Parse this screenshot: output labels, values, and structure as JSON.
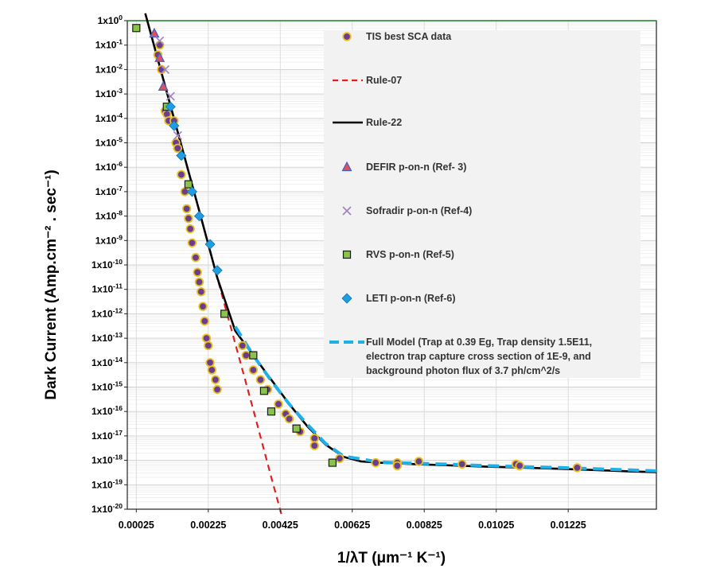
{
  "chart_data": {
    "type": "scatter",
    "xlabel": "1/λT (μm⁻¹ K⁻¹)",
    "ylabel": "Dark Current (Amp.cm⁻² . sec⁻¹)",
    "x_ticks": [
      "0.00025",
      "0.00225",
      "0.00425",
      "0.00625",
      "0.00825",
      "0.01025",
      "0.01225"
    ],
    "x_tick_values": [
      0.00025,
      0.00225,
      0.00425,
      0.00625,
      0.00825,
      0.01025,
      0.01225
    ],
    "xlim": [
      0,
      0.0147
    ],
    "y_scale": "log",
    "ylim": [
      1e-20,
      1
    ],
    "y_tick_exponents": [
      0,
      -1,
      -2,
      -3,
      -4,
      -5,
      -6,
      -7,
      -8,
      -9,
      -10,
      -11,
      -12,
      -13,
      -14,
      -15,
      -16,
      -17,
      -18,
      -19,
      -20
    ],
    "grid": true,
    "legend_position": "top-right",
    "series": [
      {
        "name": "TIS best SCA data",
        "marker": "circle",
        "color": "#6a3d8f",
        "edge_color": "#e8c020",
        "points": [
          [
            0.00085,
            0.04
          ],
          [
            0.0009,
            0.1
          ],
          [
            0.00095,
            0.01
          ],
          [
            0.00105,
            0.0002
          ],
          [
            0.0011,
            0.00015
          ],
          [
            0.00115,
            8e-05
          ],
          [
            0.0013,
            8e-05
          ],
          [
            0.00135,
            1e-05
          ],
          [
            0.0014,
            6e-06
          ],
          [
            0.0015,
            5e-07
          ],
          [
            0.0016,
            1e-07
          ],
          [
            0.00165,
            2e-08
          ],
          [
            0.0017,
            8e-09
          ],
          [
            0.00175,
            3e-09
          ],
          [
            0.0018,
            8e-10
          ],
          [
            0.0019,
            2e-10
          ],
          [
            0.00195,
            5e-11
          ],
          [
            0.002,
            2e-11
          ],
          [
            0.00205,
            8e-12
          ],
          [
            0.0021,
            2e-12
          ],
          [
            0.00215,
            5e-13
          ],
          [
            0.0022,
            1e-13
          ],
          [
            0.00225,
            5e-14
          ],
          [
            0.0023,
            1e-14
          ],
          [
            0.00235,
            5e-15
          ],
          [
            0.00245,
            2e-15
          ],
          [
            0.0025,
            8e-16
          ],
          [
            0.0032,
            5e-14
          ],
          [
            0.0033,
            2e-14
          ],
          [
            0.0035,
            5e-15
          ],
          [
            0.0037,
            2e-15
          ],
          [
            0.0039,
            8e-16
          ],
          [
            0.0042,
            2e-16
          ],
          [
            0.0044,
            8e-17
          ],
          [
            0.0045,
            5e-17
          ],
          [
            0.0048,
            1.5e-17
          ],
          [
            0.0052,
            8e-18
          ],
          [
            0.0052,
            4e-18
          ],
          [
            0.0059,
            1.2e-18
          ],
          [
            0.0069,
            8e-19
          ],
          [
            0.0075,
            8e-19
          ],
          [
            0.0075,
            6e-19
          ],
          [
            0.0081,
            9e-19
          ],
          [
            0.0093,
            7e-19
          ],
          [
            0.0108,
            7e-19
          ],
          [
            0.0109,
            6e-19
          ],
          [
            0.0125,
            5e-19
          ]
        ]
      },
      {
        "name": "Rule-07",
        "marker": "line",
        "line_style": "dashed",
        "color": "#e02020",
        "points": [
          [
            0.0005,
            2.0
          ],
          [
            0.001,
            0.004
          ],
          [
            0.0015,
            8e-06
          ],
          [
            0.002,
            1.6e-08
          ],
          [
            0.0025,
            3e-11
          ],
          [
            0.003,
            6e-14
          ],
          [
            0.0035,
            1.2e-16
          ],
          [
            0.004,
            2e-19
          ],
          [
            0.0043,
            5e-21
          ]
        ]
      },
      {
        "name": "Rule-22",
        "marker": "line",
        "line_style": "solid",
        "color": "#000000",
        "points": [
          [
            0.0005,
            2.0
          ],
          [
            0.001,
            0.004
          ],
          [
            0.0015,
            8e-06
          ],
          [
            0.002,
            1.6e-08
          ],
          [
            0.0025,
            3e-11
          ],
          [
            0.003,
            2e-13
          ],
          [
            0.0035,
            2e-14
          ],
          [
            0.004,
            2e-15
          ],
          [
            0.0045,
            2e-16
          ],
          [
            0.005,
            2.5e-17
          ],
          [
            0.0055,
            4.5e-18
          ],
          [
            0.006,
            1.4e-18
          ],
          [
            0.0065,
            9e-19
          ],
          [
            0.007,
            8e-19
          ],
          [
            0.008,
            7e-19
          ],
          [
            0.009,
            6.2e-19
          ],
          [
            0.01,
            5.5e-19
          ],
          [
            0.011,
            5e-19
          ],
          [
            0.012,
            4.5e-19
          ],
          [
            0.013,
            4e-19
          ],
          [
            0.014,
            3.5e-19
          ],
          [
            0.0147,
            3.3e-19
          ]
        ]
      },
      {
        "name": "DEFIR p-on-n (Ref- 3)",
        "marker": "triangle",
        "color": "#e05060",
        "edge_color": "#4060c0",
        "points": [
          [
            0.00075,
            0.3
          ],
          [
            0.0009,
            0.03
          ],
          [
            0.001,
            0.002
          ]
        ]
      },
      {
        "name": "Sofradir p-on-n (Ref-4)",
        "marker": "x",
        "color": "#a080c0",
        "points": [
          [
            0.0009,
            0.15
          ],
          [
            0.00105,
            0.01
          ],
          [
            0.0012,
            0.0008
          ],
          [
            0.0014,
            2e-05
          ]
        ]
      },
      {
        "name": "RVS p-on-n (Ref-5)",
        "marker": "square",
        "color": "#8bc34a",
        "edge_color": "#1a1a1a",
        "points": [
          [
            0.00025,
            0.5
          ],
          [
            0.0011,
            0.0003
          ],
          [
            0.0017,
            2e-07
          ],
          [
            0.0027,
            1e-12
          ],
          [
            0.0035,
            2e-14
          ],
          [
            0.0038,
            7e-16
          ],
          [
            0.004,
            1e-16
          ],
          [
            0.0047,
            2e-17
          ],
          [
            0.0057,
            8e-19
          ]
        ]
      },
      {
        "name": "LETI p-on-n (Ref-6)",
        "marker": "diamond",
        "color": "#1e9ee0",
        "points": [
          [
            0.0012,
            0.0003
          ],
          [
            0.0013,
            5e-05
          ],
          [
            0.0015,
            3e-06
          ],
          [
            0.0018,
            1e-07
          ],
          [
            0.002,
            1e-08
          ],
          [
            0.0023,
            7e-10
          ],
          [
            0.0025,
            6e-11
          ]
        ]
      },
      {
        "name": "Full Model (Trap at 0.39 Eg, Trap density 1.5E11, electron trap capture cross section of 1E-9, and background photon flux of 3.7 ph/cm^2/s",
        "marker": "line",
        "line_style": "dashed",
        "color": "#20b0e8",
        "points": [
          [
            0.003,
            3e-13
          ],
          [
            0.0035,
            2e-14
          ],
          [
            0.004,
            1.8e-15
          ],
          [
            0.0045,
            2e-16
          ],
          [
            0.005,
            3e-17
          ],
          [
            0.0055,
            5e-18
          ],
          [
            0.006,
            1.5e-18
          ],
          [
            0.007,
            8.5e-19
          ],
          [
            0.008,
            7.5e-19
          ],
          [
            0.009,
            6.8e-19
          ],
          [
            0.01,
            6e-19
          ],
          [
            0.011,
            5.5e-19
          ],
          [
            0.012,
            5e-19
          ],
          [
            0.013,
            4.5e-19
          ],
          [
            0.014,
            4e-19
          ],
          [
            0.0147,
            3.7e-19
          ]
        ]
      }
    ],
    "legend": [
      {
        "label": "TIS best SCA data",
        "marker": "circle",
        "color": "#6a3d8f",
        "edge_color": "#e8c020"
      },
      {
        "label": "Rule-07",
        "marker": "dash-line",
        "color": "#e02020"
      },
      {
        "label": "Rule-22",
        "marker": "solid-line",
        "color": "#000000"
      },
      {
        "label": "DEFIR p-on-n (Ref- 3)",
        "marker": "triangle",
        "color": "#e05060",
        "edge_color": "#4060c0"
      },
      {
        "label": "Sofradir p-on-n (Ref-4)",
        "marker": "x",
        "color": "#a080c0"
      },
      {
        "label": "RVS p-on-n (Ref-5)",
        "marker": "square",
        "color": "#8bc34a",
        "edge_color": "#1a1a1a"
      },
      {
        "label": "LETI p-on-n (Ref-6)",
        "marker": "diamond",
        "color": "#1e9ee0"
      },
      {
        "label": "Full Model (Trap at 0.39 Eg, Trap density 1.5E11,",
        "label_line2": "electron trap capture cross section of 1E-9, and",
        "label_line3": "background photon flux of 3.7 ph/cm^2/s",
        "marker": "dash-line-thick",
        "color": "#20b0e8"
      }
    ]
  }
}
